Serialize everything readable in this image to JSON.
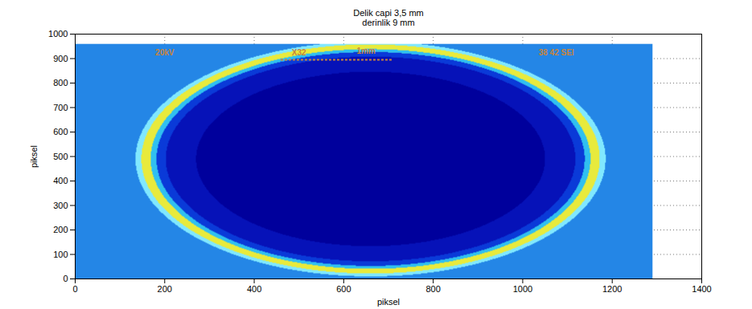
{
  "chart_data": {
    "type": "heatmap",
    "title": "Delik capi 3,5 mm",
    "subtitle": "derinlik 9 mm",
    "x_label": "piksel",
    "y_label": "piksel",
    "xlim": [
      0,
      1400
    ],
    "ylim": [
      0,
      1000
    ],
    "xticks": [
      0,
      200,
      400,
      600,
      800,
      1000,
      1200,
      1400
    ],
    "yticks": [
      0,
      100,
      200,
      300,
      400,
      500,
      600,
      700,
      800,
      900,
      1000
    ],
    "grid": true,
    "image_extent": {
      "x": [
        0,
        1290
      ],
      "y": [
        0,
        960
      ]
    },
    "background": "#2486e6",
    "ellipse": {
      "cx": 660,
      "cy": 490,
      "rx": 520,
      "ry": 475
    },
    "rings": [
      {
        "to": 0.75,
        "color": "#00009c"
      },
      {
        "to": 0.88,
        "color": "#0612b8"
      },
      {
        "to": 0.92,
        "color": "#0a3ad8"
      },
      {
        "to": 0.945,
        "color": "#30c0f0"
      },
      {
        "to": 0.985,
        "color": "#e8ea3c"
      },
      {
        "to": 1.01,
        "color": "#80e8ff"
      }
    ],
    "annotations": [
      {
        "text": "20kV",
        "x": 200,
        "y": 925
      },
      {
        "text": "X32",
        "x": 500,
        "y": 925
      },
      {
        "text": "1mm",
        "x": 650,
        "y": 930
      },
      {
        "text": "38 42 SEI",
        "x": 1075,
        "y": 925
      }
    ],
    "scale_bar": {
      "x": [
        460,
        710
      ],
      "y": 895
    }
  }
}
